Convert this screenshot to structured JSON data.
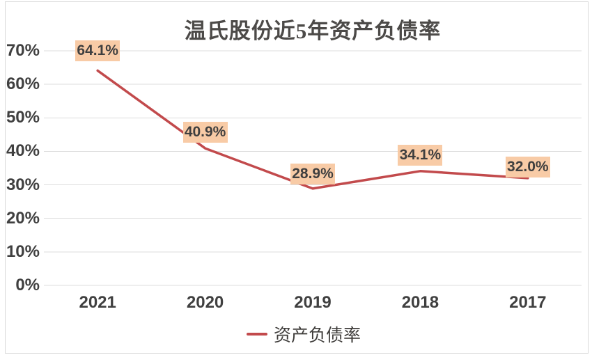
{
  "chart_data": {
    "type": "line",
    "title": "温氏股份近5年资产负债率",
    "categories": [
      "2021",
      "2020",
      "2019",
      "2018",
      "2017"
    ],
    "series": [
      {
        "name": "资产负债率",
        "values": [
          64.1,
          40.9,
          28.9,
          34.1,
          32.0
        ]
      }
    ],
    "data_labels": [
      "64.1%",
      "40.9%",
      "28.9%",
      "34.1%",
      "32.0%"
    ],
    "ylim": [
      0,
      70
    ],
    "y_ticks": [
      {
        "value": 0,
        "label": "0%"
      },
      {
        "value": 10,
        "label": "10%"
      },
      {
        "value": 20,
        "label": "20%"
      },
      {
        "value": 30,
        "label": "30%"
      },
      {
        "value": 40,
        "label": "40%"
      },
      {
        "value": 50,
        "label": "50%"
      },
      {
        "value": 60,
        "label": "60%"
      },
      {
        "value": 70,
        "label": "70%"
      }
    ],
    "grid": true,
    "legend_position": "bottom",
    "colors": {
      "line": "#C24A4C",
      "label_bg": "#F8CBA6",
      "grid": "#DCDCDC",
      "frame": "#D9D9D9",
      "axis_text": "#404040",
      "title_text": "#4C4A48"
    }
  }
}
